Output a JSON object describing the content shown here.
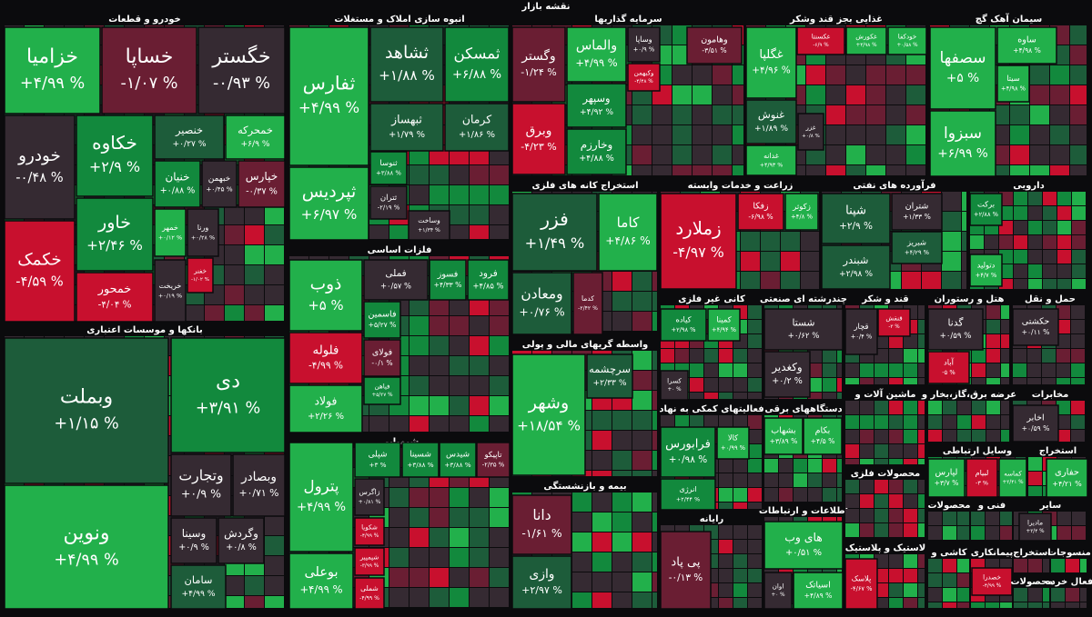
{
  "title": "نقشه بازار",
  "sectors": [
    {
      "title": "خودرو و قطعات",
      "tiles": [
        {
          "name": "خزامیا",
          "change": "+۴/۹۹ %"
        },
        {
          "name": "خساپا",
          "change": "-۱/۰۷ %"
        },
        {
          "name": "خگستر",
          "change": "-۰/۹۳ %"
        },
        {
          "name": "خودرو",
          "change": "-۰/۴۸ %"
        },
        {
          "name": "خکاوه",
          "change": "+۲/۹ %"
        },
        {
          "name": "خنصیر",
          "change": "+۰/۲۷ %"
        },
        {
          "name": "خمحرکه",
          "change": "+۶/۹ %"
        },
        {
          "name": "خاور",
          "change": "+۲/۴۶ %"
        },
        {
          "name": "خنیان",
          "change": "+۰/۸۸ %"
        },
        {
          "name": "خبهمن",
          "change": "+۰/۴۵ %"
        },
        {
          "name": "خپارس",
          "change": "-۰/۳۷ %"
        },
        {
          "name": "خکمک",
          "change": "-۴/۵۹ %"
        },
        {
          "name": "خمهر",
          "change": "+۰/۱۲ %"
        },
        {
          "name": "ورنا",
          "change": "+۰/۲۸ %"
        },
        {
          "name": "خمحور",
          "change": "-۴/۰۴ %"
        },
        {
          "name": "خریخت",
          "change": "+۰/۱۹ %"
        },
        {
          "name": "خفنر",
          "change": "-۱/۰۲ %"
        }
      ]
    },
    {
      "title": "بانکها و موسسات اعتباری",
      "tiles": [
        {
          "name": "وبملت",
          "change": "+۱/۱۵ %"
        },
        {
          "name": "دی",
          "change": "+۳/۹۱ %"
        },
        {
          "name": "ونوین",
          "change": "+۴/۹۹ %"
        },
        {
          "name": "وتجارت",
          "change": "+۰/۹ %"
        },
        {
          "name": "وبصادر",
          "change": "+۰/۷۱ %"
        },
        {
          "name": "وسینا",
          "change": "+۰/۹ %"
        },
        {
          "name": "وگردش",
          "change": "+۰/۸ %"
        },
        {
          "name": "سامان",
          "change": "+۴/۹۹ %"
        }
      ]
    },
    {
      "title": "انبوه سازی املاک و مستغلات",
      "tiles": [
        {
          "name": "ثفارس",
          "change": "+۴/۹۹ %"
        },
        {
          "name": "ثشاهد",
          "change": "+۱/۸۸ %"
        },
        {
          "name": "ثمسکن",
          "change": "+۶/۸۸ %"
        },
        {
          "name": "ثبهساز",
          "change": "+۱/۷۹ %"
        },
        {
          "name": "کرمان",
          "change": "+۱/۸۶ %"
        },
        {
          "name": "ثپردیس",
          "change": "+۶/۹۷ %"
        },
        {
          "name": "ثنوسا",
          "change": "+۳/۸۸ %"
        },
        {
          "name": "ثتران",
          "change": "-۲/۱۹ %"
        },
        {
          "name": "وساخت",
          "change": "+۱/۳۴ %"
        }
      ]
    },
    {
      "title": "فلزات اساسی",
      "tiles": [
        {
          "name": "ذوب",
          "change": "+۵ %"
        },
        {
          "name": "فملی",
          "change": "+۰/۵۷ %"
        },
        {
          "name": "فسوز",
          "change": "+۴/۳۳ %"
        },
        {
          "name": "فرود",
          "change": "+۴/۸۵ %"
        },
        {
          "name": "فاسمین",
          "change": "+۵/۲۷ %"
        },
        {
          "name": "فلوله",
          "change": "-۴/۹۹ %"
        },
        {
          "name": "فولای",
          "change": "-۰/۱ %"
        },
        {
          "name": "فیاهن",
          "change": "+۵/۲۷ %"
        },
        {
          "name": "فولاد",
          "change": "+۲/۲۶ %"
        }
      ]
    },
    {
      "title": "شیمیایی",
      "tiles": [
        {
          "name": "پترول",
          "change": "+۴/۹۹ %"
        },
        {
          "name": "شپلی",
          "change": "+۳ %"
        },
        {
          "name": "شسینا",
          "change": "+۳/۸۸ %"
        },
        {
          "name": "شیدس",
          "change": "+۳/۸۸ %"
        },
        {
          "name": "تاپیکو",
          "change": "-۲/۳۵ %"
        },
        {
          "name": "زاگرس",
          "change": "+۰/۸۱ %"
        },
        {
          "name": "شکویا",
          "change": "-۴/۹۹ %"
        },
        {
          "name": "شپمپیر",
          "change": "-۳/۹۹ %"
        },
        {
          "name": "بوعلی",
          "change": "+۴/۹۹ %"
        },
        {
          "name": "شملی",
          "change": "-۴/۹۹ %"
        }
      ]
    },
    {
      "title": "سرمایه گذاریها",
      "tiles": [
        {
          "name": "وگستر",
          "change": "-۱/۲۴ %"
        },
        {
          "name": "وبرق",
          "change": "-۴/۲۳ %"
        },
        {
          "name": "والماس",
          "change": "+۴/۹۹ %"
        },
        {
          "name": "وساپا",
          "change": "+۰/۹ %"
        },
        {
          "name": "وکبهمن",
          "change": "-۴/۴۸ %"
        },
        {
          "name": "وسپهر",
          "change": "+۴/۹۲ %"
        },
        {
          "name": "وخارزم",
          "change": "+۴/۸۸ %"
        },
        {
          "name": "وهامون",
          "change": "-۳/۵۱ %"
        }
      ]
    },
    {
      "title": "استخراج کانه های فلزی",
      "tiles": [
        {
          "name": "فزر",
          "change": "+۱/۴۹ %"
        },
        {
          "name": "کاما",
          "change": "+۴/۸۶ %"
        },
        {
          "name": "ومعادن",
          "change": "+۰/۷۶ %"
        },
        {
          "name": "کدما",
          "change": "-۲/۴۲ %"
        }
      ]
    },
    {
      "title": "واسطه گریهای مالی و پولی",
      "tiles": [
        {
          "name": "وشهر",
          "change": "+۱۸/۵۴ %"
        },
        {
          "name": "سرچشمه",
          "change": "+۲/۳۳ %"
        }
      ]
    },
    {
      "title": "بیمه و بازنشستگی",
      "tiles": [
        {
          "name": "دانا",
          "change": "-۱/۶۱ %"
        },
        {
          "name": "وازی",
          "change": "+۲/۹۷ %"
        }
      ]
    },
    {
      "title": "غذایی بجز قند وشکر",
      "tiles": [
        {
          "name": "غگلپا",
          "change": "+۴/۹۶ %"
        },
        {
          "name": "غکسنتا",
          "change": "-۶/۹ %"
        },
        {
          "name": "غکورش",
          "change": "+۴/۹۸ %"
        },
        {
          "name": "خودکفا",
          "change": "+۰/۵۸ %"
        },
        {
          "name": "غنوش",
          "change": "+۱/۸۹ %"
        },
        {
          "name": "غزر",
          "change": "+۰/۸ %"
        },
        {
          "name": "غدانه",
          "change": "+۴/۹۳ %"
        }
      ]
    },
    {
      "title": "سیمان آهک گچ",
      "tiles": [
        {
          "name": "سصفها",
          "change": "+۵ %"
        },
        {
          "name": "ساوه",
          "change": "+۴/۹۸ %"
        },
        {
          "name": "سیتا",
          "change": "+۴/۹۸ %"
        },
        {
          "name": "سبزوا",
          "change": "+۶/۹۹ %"
        }
      ]
    },
    {
      "title": "زراعت و خدمات وابسته",
      "tiles": [
        {
          "name": "زملارد",
          "change": "-۴/۹۷ %"
        },
        {
          "name": "زفکا",
          "change": "-۶/۹۸ %"
        },
        {
          "name": "زکوثر",
          "change": "+۴/۸ %"
        }
      ]
    },
    {
      "title": "فرآورده های نفتی",
      "tiles": [
        {
          "name": "شپنا",
          "change": "+۲/۹ %"
        },
        {
          "name": "شتران",
          "change": "+۱/۳۳ %"
        },
        {
          "name": "شبریز",
          "change": "+۴/۲۹ %"
        },
        {
          "name": "شبندر",
          "change": "+۲/۹۸ %"
        }
      ]
    },
    {
      "title": "دارویی",
      "tiles": [
        {
          "name": "برکت",
          "change": "+۲/۸۸ %"
        },
        {
          "name": "دتولید",
          "change": "+۴/۷ %"
        }
      ]
    },
    {
      "title": "کانی غیر فلزی",
      "tiles": [
        {
          "name": "کیاده",
          "change": "+۲/۹۸ %"
        },
        {
          "name": "کمینا",
          "change": "+۴/۹۴ %"
        },
        {
          "name": "کسرا",
          "change": "+۰ %"
        }
      ]
    },
    {
      "title": "چندرشته ای صنعتی",
      "tiles": [
        {
          "name": "شستا",
          "change": "+۰/۶۲ %"
        },
        {
          "name": "وکغدیر",
          "change": "+۰/۲ %"
        }
      ]
    },
    {
      "title": "قند و شکر",
      "tiles": [
        {
          "name": "قچار",
          "change": "+۰/۴ %"
        },
        {
          "name": "قنقش",
          "change": "-۳ %"
        }
      ]
    },
    {
      "title": "هتل و رستوران",
      "tiles": [
        {
          "name": "گدنا",
          "change": "+۰/۵۹ %"
        },
        {
          "name": "آباد",
          "change": "-۵ %"
        }
      ]
    },
    {
      "title": "حمل و نقل",
      "tiles": [
        {
          "name": "حکشتی",
          "change": "+۰/۱۱ %"
        }
      ]
    },
    {
      "title": "فعالیتهای کمکی به نهاد",
      "tiles": [
        {
          "name": "فرابورس",
          "change": "+۰/۹۸ %"
        },
        {
          "name": "کالا",
          "change": "+۰/۹۹ %"
        },
        {
          "name": "انرژی",
          "change": "+۲/۴۴ %"
        }
      ]
    },
    {
      "title": "رایانه",
      "tiles": [
        {
          "name": "پی پاد",
          "change": "-۰/۱۳ %"
        }
      ]
    },
    {
      "title": "دستگاههای برقی",
      "tiles": [
        {
          "name": "بشهاب",
          "change": "+۳/۸۹ %"
        },
        {
          "name": "بکام",
          "change": "+۴/۵ %"
        }
      ]
    },
    {
      "title": "اطلاعات و ارتباطات",
      "tiles": [
        {
          "name": "های وب",
          "change": "+۰/۵۱ %"
        },
        {
          "name": "اوان",
          "change": "+۰ %"
        },
        {
          "name": "اسیاتک",
          "change": "+۴/۸۹ %"
        }
      ]
    },
    {
      "title": "ماشین آلات و"
    },
    {
      "title": "محصولات فلزی"
    },
    {
      "title": "لاستیک و پلاستیک",
      "tiles": [
        {
          "name": "پلاسک",
          "change": "-۴/۶۷ %"
        }
      ]
    },
    {
      "title": "عرضه برق،گاز،بخار و"
    },
    {
      "title": "مخابرات",
      "tiles": [
        {
          "name": "اخابر",
          "change": "+۰/۵۹ %"
        }
      ]
    },
    {
      "title": "وسایل ارتباطی",
      "tiles": [
        {
          "name": "لپارس",
          "change": "+۳/۷ %"
        },
        {
          "name": "لبیام",
          "change": "-۳ %"
        },
        {
          "name": "کماسه",
          "change": "+۲/۴۱ %"
        }
      ]
    },
    {
      "title": "استخراج",
      "tiles": [
        {
          "name": "حفاری",
          "change": "+۴/۲۱ %"
        }
      ]
    },
    {
      "title": "محصولات"
    },
    {
      "title": "فنی و"
    },
    {
      "title": "سایر",
      "tiles": [
        {
          "name": "مادیرا",
          "change": "+۳/۴ %"
        }
      ]
    },
    {
      "title": "کاشی و"
    },
    {
      "title": "پیمانکاری",
      "tiles": [
        {
          "name": "خصدرا",
          "change": "-۴/۹۹ %"
        }
      ]
    },
    {
      "title": "استخراج"
    },
    {
      "title": "منسوجات"
    },
    {
      "title": "محصولات"
    },
    {
      "title": "فعال خرده"
    }
  ]
}
